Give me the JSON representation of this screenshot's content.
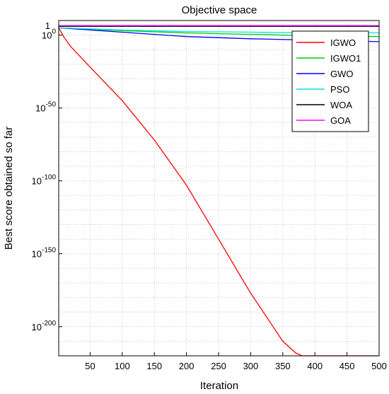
{
  "chart_data": {
    "type": "line",
    "title": "Objective space",
    "xlabel": "Iteration",
    "ylabel": "Best score obtained so far",
    "x_scale": "linear",
    "y_scale": "log",
    "xlim": [
      1,
      500
    ],
    "ylim_exponent": [
      -220,
      10
    ],
    "x_ticks": [
      50,
      100,
      150,
      200,
      250,
      300,
      350,
      400,
      450,
      500
    ],
    "y_ticks": [
      {
        "exponent": 0,
        "label_base": "10",
        "label_exp": "0"
      },
      {
        "exponent": -50,
        "label_base": "10",
        "label_exp": "-50"
      },
      {
        "exponent": -100,
        "label_base": "10",
        "label_exp": "-100"
      },
      {
        "exponent": -150,
        "label_base": "10",
        "label_exp": "-150"
      },
      {
        "exponent": -200,
        "label_base": "10",
        "label_exp": "-200"
      }
    ],
    "y_top_label": "1",
    "grid": true,
    "legend_position": "top-right",
    "series": [
      {
        "name": "IGWO",
        "color": "#ff0000",
        "x": [
          1,
          10,
          20,
          50,
          100,
          150,
          200,
          250,
          300,
          350,
          370,
          380,
          500
        ],
        "log10_y": [
          5,
          -2,
          -8,
          -22,
          -45,
          -72,
          -103,
          -140,
          -177,
          -210,
          -218,
          -220,
          -220
        ]
      },
      {
        "name": "IGWO1",
        "color": "#00cc00",
        "x": [
          1,
          100,
          200,
          300,
          400,
          500
        ],
        "log10_y": [
          5,
          3,
          1.5,
          0.5,
          -0.5,
          -1
        ]
      },
      {
        "name": "GWO",
        "color": "#0000ff",
        "x": [
          1,
          100,
          200,
          300,
          400,
          500
        ],
        "log10_y": [
          5,
          2,
          -1,
          -2.5,
          -3.5,
          -4.5
        ]
      },
      {
        "name": "PSO",
        "color": "#00e5e5",
        "x": [
          1,
          100,
          200,
          300,
          400,
          500
        ],
        "log10_y": [
          5,
          3.5,
          2.5,
          2,
          1.5,
          1.5
        ]
      },
      {
        "name": "WOA",
        "color": "#000000",
        "x": [
          1,
          500
        ],
        "log10_y": [
          6,
          6
        ]
      },
      {
        "name": "GOA",
        "color": "#ff00ff",
        "x": [
          1,
          500
        ],
        "log10_y": [
          6.5,
          6.5
        ]
      }
    ]
  }
}
